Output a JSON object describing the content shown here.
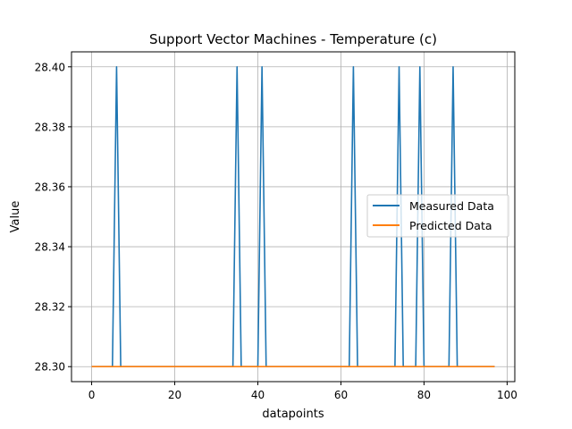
{
  "chart_data": {
    "type": "line",
    "title": "Support Vector Machines - Temperature (c)",
    "xlabel": "datapoints",
    "ylabel": "Value",
    "xlim": [
      -4.85,
      101.85
    ],
    "ylim": [
      28.295,
      28.405
    ],
    "xticks": [
      0,
      20,
      40,
      60,
      80,
      100
    ],
    "yticks": [
      28.3,
      28.32,
      28.34,
      28.36,
      28.38,
      28.4
    ],
    "xtick_labels": [
      "0",
      "20",
      "40",
      "60",
      "80",
      "100"
    ],
    "ytick_labels": [
      "28.30",
      "28.32",
      "28.34",
      "28.36",
      "28.38",
      "28.40"
    ],
    "grid": true,
    "legend_position": "center-right",
    "series": [
      {
        "name": "Measured Data",
        "color": "#1f77b4",
        "x_range": [
          0,
          97
        ],
        "baseline": 28.3,
        "peak_value": 28.4,
        "peak_indices": [
          6,
          35,
          41,
          63,
          74,
          79,
          87
        ]
      },
      {
        "name": "Predicted Data",
        "color": "#ff7f0e",
        "x_range": [
          0,
          97
        ],
        "baseline": 28.3,
        "peak_value": 28.3,
        "peak_indices": []
      }
    ]
  }
}
